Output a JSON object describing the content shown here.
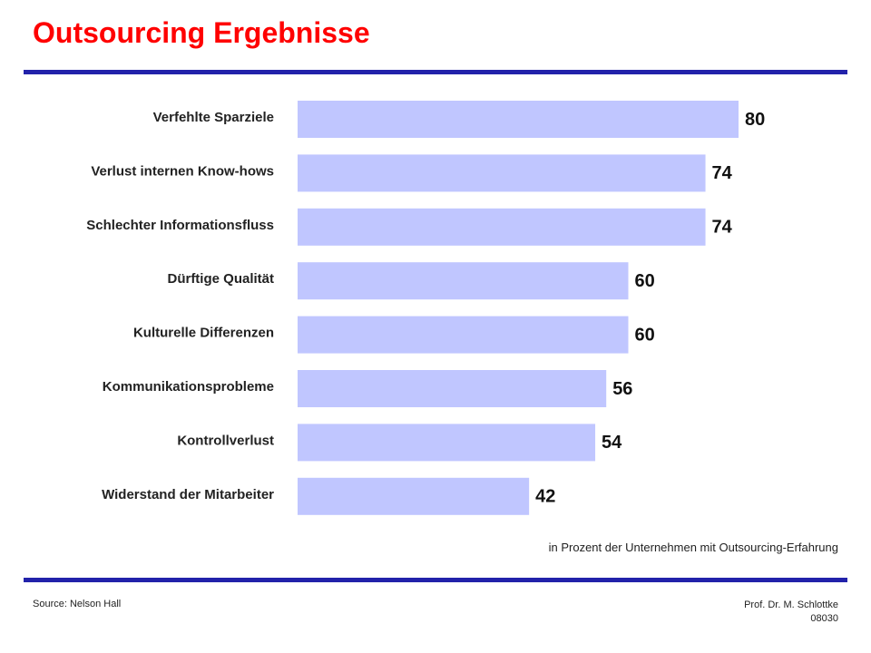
{
  "slide": {
    "title": "Outsourcing Ergebnisse",
    "note": "in Prozent der Unternehmen mit Outsourcing-Erfahrung",
    "source": "Source: Nelson Hall",
    "author": "Prof. Dr. M. Schlottke",
    "slide_number": "08030"
  },
  "colors": {
    "title": "#ff0000",
    "rule": "#2222aa",
    "bar": "#c0c6ff"
  },
  "chart_data": {
    "type": "bar",
    "orientation": "horizontal",
    "categories": [
      "Verfehlte Sparziele",
      "Verlust internen Know-hows",
      "Schlechter Informationsfluss",
      "Dürftige Qualität",
      "Kulturelle Differenzen",
      "Kommunikationsprobleme",
      "Kontrollverlust",
      "Widerstand der Mitarbeiter"
    ],
    "values": [
      80,
      74,
      74,
      60,
      60,
      56,
      54,
      42
    ],
    "data_labels": true,
    "xlim": [
      0,
      100
    ],
    "grid": false,
    "legend": "none"
  }
}
